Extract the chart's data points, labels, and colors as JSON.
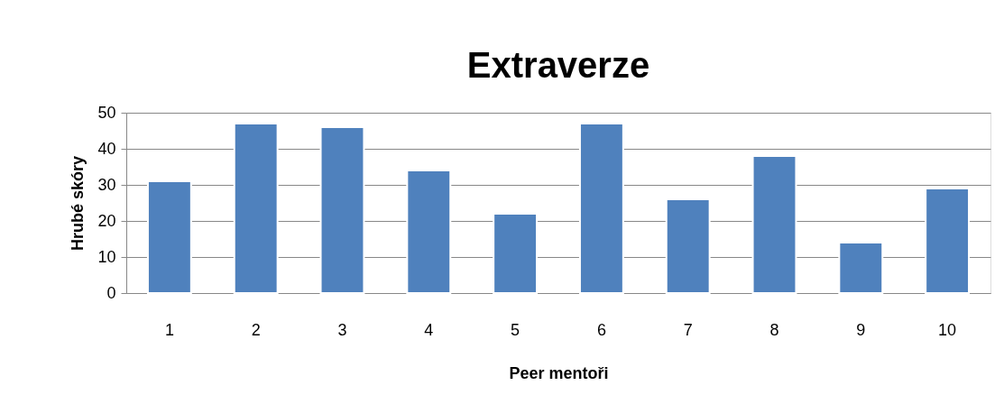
{
  "chart_data": {
    "type": "bar",
    "title": "Extraverze",
    "xlabel": "Peer mentoři",
    "ylabel": "Hrubé skóry",
    "categories": [
      "1",
      "2",
      "3",
      "4",
      "5",
      "6",
      "7",
      "8",
      "9",
      "10"
    ],
    "values": [
      31,
      47,
      46,
      34,
      22,
      47,
      26,
      38,
      14,
      29
    ],
    "color": "#4f81bd",
    "ylim": [
      0,
      50
    ],
    "yticks": [
      0,
      10,
      20,
      30,
      40,
      50
    ],
    "grid": "y"
  }
}
